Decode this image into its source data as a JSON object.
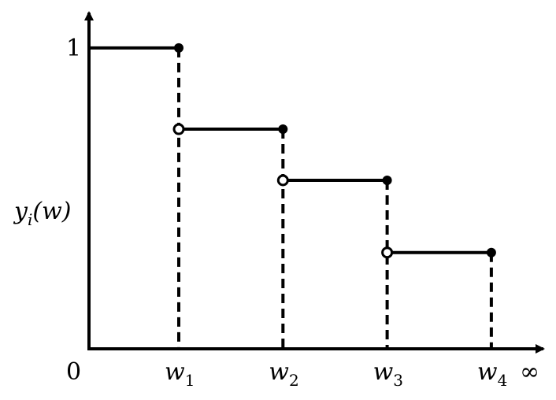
{
  "chart_data": {
    "type": "step",
    "y_label": {
      "base": "y",
      "sub": "i",
      "rest": "(w)"
    },
    "categories": [
      {
        "base": "w",
        "sub": "1"
      },
      {
        "base": "w",
        "sub": "2"
      },
      {
        "base": "w",
        "sub": "3"
      },
      {
        "base": "w",
        "sub": "4"
      }
    ],
    "values": [
      1,
      0.73,
      0.56,
      0.32
    ],
    "x_end_label": "∞",
    "ylim": [
      0,
      1.12
    ],
    "yticks": [
      0,
      1
    ],
    "color": "#000000"
  }
}
